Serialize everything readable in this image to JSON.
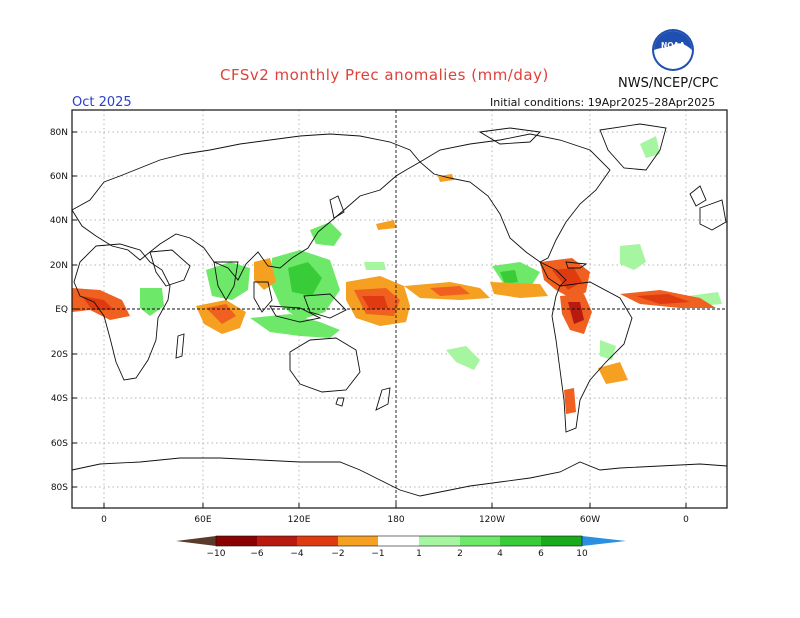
{
  "header": {
    "title": "CFSv2 monthly Prec anomalies (mm/day)",
    "org": "NWS/NCEP/CPC",
    "month": "Oct 2025",
    "initial_conditions": "Initial conditions: 19Apr2025–28Apr2025",
    "logo_text": "NOAA"
  },
  "map": {
    "projection": "equirectangular",
    "lon_range": [
      "20W",
      "20E (wraps 380)"
    ],
    "lat_range": [
      -90,
      90
    ],
    "grid": true,
    "lat_labels": [
      "80N",
      "60N",
      "40N",
      "20N",
      "EQ",
      "20S",
      "40S",
      "60S",
      "80S"
    ],
    "lon_labels": [
      "0",
      "60E",
      "120E",
      "180",
      "120W",
      "60W",
      "0"
    ],
    "reference_lines": [
      "Equator (dashed)",
      "Dateline 180 (dashed)"
    ]
  },
  "colorbar": {
    "labels": [
      "−10",
      "−6",
      "−4",
      "−2",
      "−1",
      "1",
      "2",
      "4",
      "6",
      "10"
    ],
    "colors": {
      "dry_extreme": "#5a3a2a",
      "dry": [
        "#8b0000",
        "#b81a0f",
        "#e03a10",
        "#f06020",
        "#f5a020"
      ],
      "neutral": "#ffffff",
      "wet": [
        "#a6f5a0",
        "#6de868",
        "#38cc38",
        "#1aab1a",
        "#0f8a0f"
      ],
      "wet_extreme": "#2a8fe0"
    }
  }
}
